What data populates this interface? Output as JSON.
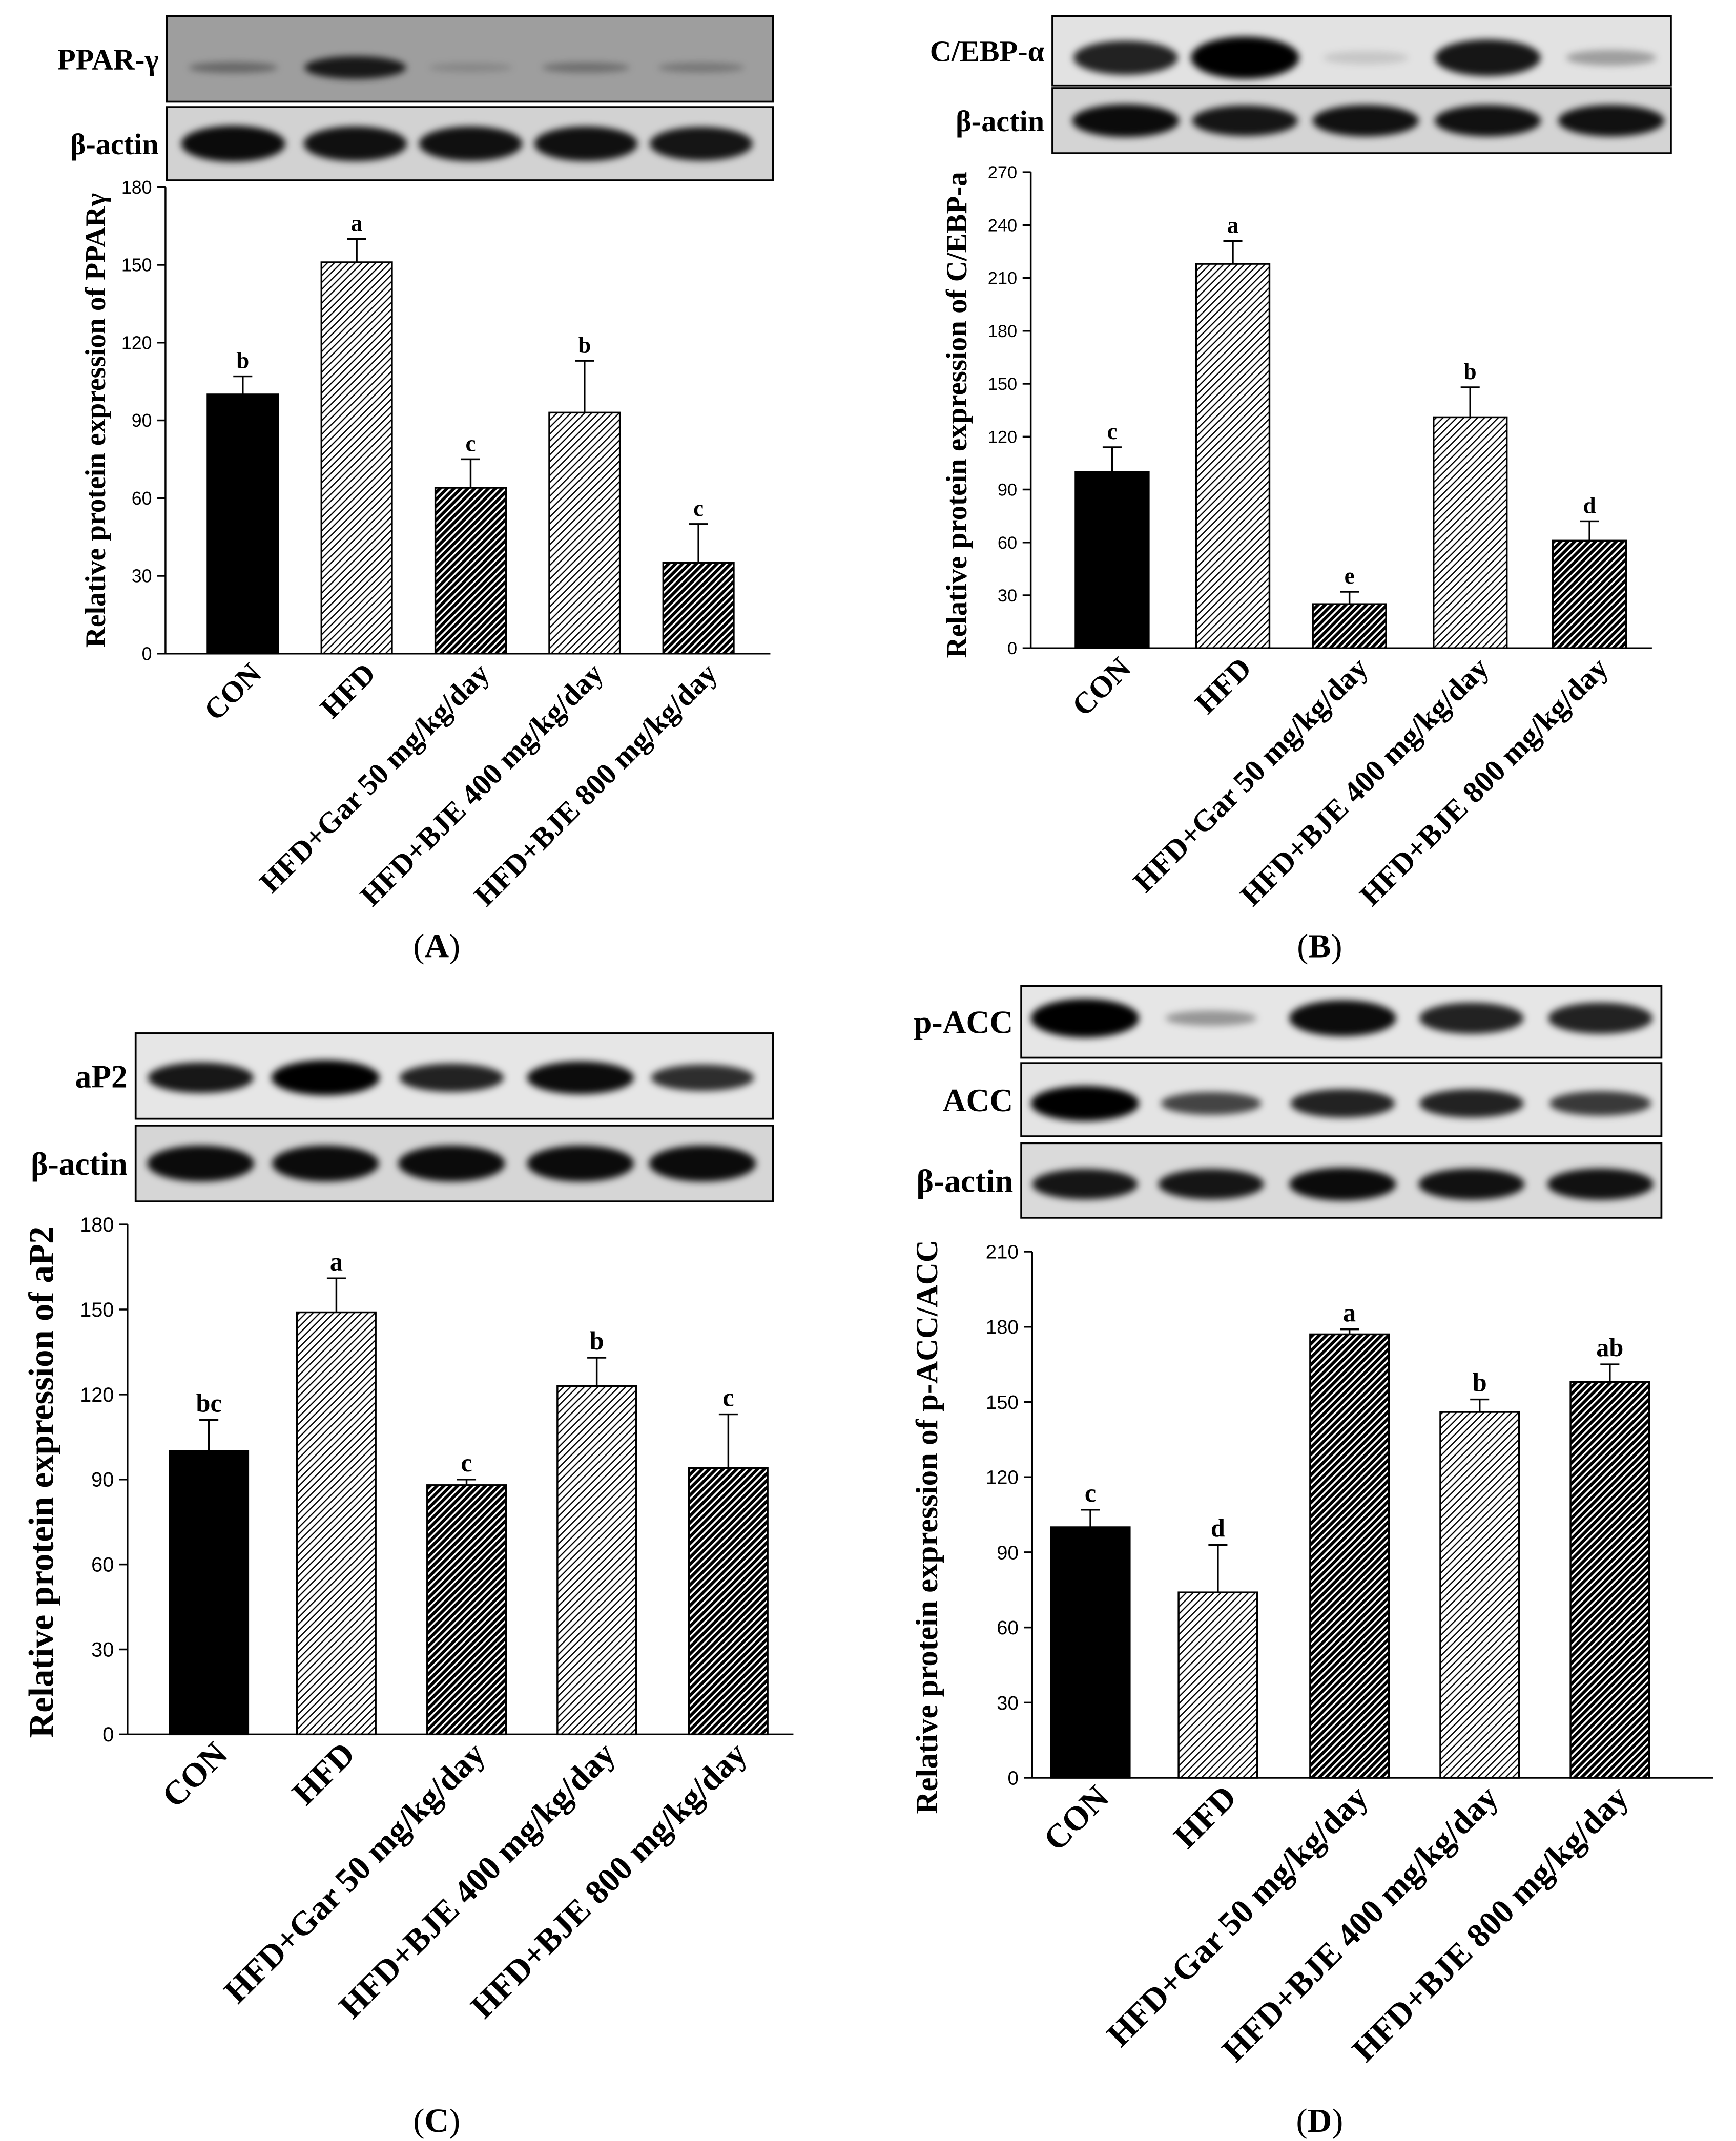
{
  "figure": {
    "background": "#ffffff",
    "ink": "#000000"
  },
  "chart_data": [
    {
      "type": "bar",
      "panel_label": "(A)",
      "categories": [
        "CON",
        "HFD",
        "HFD+Gar 50 mg/kg/day",
        "HFD+BJE 400 mg/kg/day",
        "HFD+BJE 800 mg/kg/day"
      ],
      "values": [
        100,
        151,
        64,
        93,
        35
      ],
      "errors": [
        7,
        9,
        11,
        20,
        15
      ],
      "letters": [
        "b",
        "a",
        "c",
        "b",
        "c"
      ],
      "ylabel": "Relative protein expression of PPARγ",
      "ylim": [
        0,
        180
      ],
      "yticks": [
        0,
        30,
        60,
        90,
        120,
        150,
        180
      ],
      "grid": false,
      "blots": [
        {
          "label": "PPAR-γ",
          "background": "#9e9e9e",
          "intensity": [
            0.35,
            0.85,
            0.15,
            0.3,
            0.25
          ]
        },
        {
          "label": "β-actin",
          "background": "#d2d2d2",
          "intensity": [
            0.95,
            0.92,
            0.92,
            0.92,
            0.9
          ]
        }
      ]
    },
    {
      "type": "bar",
      "panel_label": "(B)",
      "categories": [
        "CON",
        "HFD",
        "HFD+Gar 50 mg/kg/day",
        "HFD+BJE 400 mg/kg/day",
        "HFD+BJE 800 mg/kg/day"
      ],
      "values": [
        100,
        218,
        25,
        131,
        61
      ],
      "errors": [
        14,
        13,
        7,
        17,
        11
      ],
      "letters": [
        "c",
        "a",
        "e",
        "b",
        "d"
      ],
      "ylabel": "Relative protein expression of C/EBP-a",
      "ylim": [
        0,
        270
      ],
      "yticks": [
        0,
        30,
        60,
        90,
        120,
        150,
        180,
        210,
        240,
        270
      ],
      "grid": false,
      "blots": [
        {
          "label": "C/EBP-α",
          "background": "#e2e2e2",
          "intensity": [
            0.85,
            1.0,
            0.12,
            0.9,
            0.3
          ]
        },
        {
          "label": "β-actin",
          "background": "#d4d4d4",
          "intensity": [
            0.95,
            0.9,
            0.92,
            0.92,
            0.92
          ]
        }
      ]
    },
    {
      "type": "bar",
      "panel_label": "(C)",
      "categories": [
        "CON",
        "HFD",
        "HFD+Gar 50 mg/kg/day",
        "HFD+BJE 400 mg/kg/day",
        "HFD+BJE 800 mg/kg/day"
      ],
      "values": [
        100,
        149,
        88,
        123,
        94
      ],
      "errors": [
        11,
        12,
        2,
        10,
        19
      ],
      "letters": [
        "bc",
        "a",
        "c",
        "b",
        "c"
      ],
      "ylabel": "Relative protein expression of aP2",
      "ylim": [
        0,
        180
      ],
      "yticks": [
        0,
        30,
        60,
        90,
        120,
        150,
        180
      ],
      "grid": false,
      "blots": [
        {
          "label": "aP2",
          "background": "#e6e6e6",
          "intensity": [
            0.9,
            1.0,
            0.85,
            0.95,
            0.8
          ]
        },
        {
          "label": "β-actin",
          "background": "#d6d6d6",
          "intensity": [
            0.95,
            0.95,
            0.95,
            0.95,
            0.95
          ]
        }
      ]
    },
    {
      "type": "bar",
      "panel_label": "(D)",
      "categories": [
        "CON",
        "HFD",
        "HFD+Gar 50 mg/kg/day",
        "HFD+BJE 400 mg/kg/day",
        "HFD+BJE 800 mg/kg/day"
      ],
      "values": [
        100,
        74,
        177,
        146,
        158
      ],
      "errors": [
        7,
        19,
        2,
        5,
        7
      ],
      "letters": [
        "c",
        "d",
        "a",
        "b",
        "ab"
      ],
      "ylabel": "Relative protein expression of p-ACC/ACC",
      "ylim": [
        0,
        210
      ],
      "yticks": [
        0,
        30,
        60,
        90,
        120,
        150,
        180,
        210
      ],
      "grid": false,
      "blots": [
        {
          "label": "p-ACC",
          "background": "#e6e6e6",
          "intensity": [
            1.0,
            0.35,
            0.95,
            0.85,
            0.85
          ]
        },
        {
          "label": "ACC",
          "background": "#e4e4e4",
          "intensity": [
            1.0,
            0.7,
            0.85,
            0.85,
            0.75
          ]
        },
        {
          "label": "β-actin",
          "background": "#dadada",
          "intensity": [
            0.9,
            0.9,
            0.95,
            0.92,
            0.92
          ]
        }
      ]
    }
  ]
}
